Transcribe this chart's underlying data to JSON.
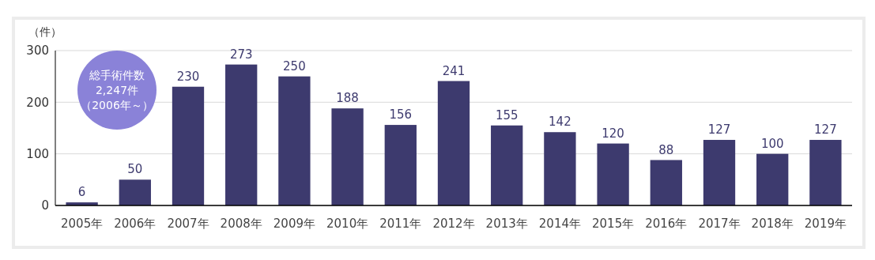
{
  "chart_data": {
    "type": "bar",
    "ylabel": "（件）",
    "categories": [
      "2005年",
      "2006年",
      "2007年",
      "2008年",
      "2009年",
      "2010年",
      "2011年",
      "2012年",
      "2013年",
      "2014年",
      "2015年",
      "2016年",
      "2017年",
      "2018年",
      "2019年"
    ],
    "values": [
      6,
      50,
      230,
      273,
      250,
      188,
      156,
      241,
      155,
      142,
      120,
      88,
      127,
      100,
      127
    ],
    "color": "#3d3a6e",
    "ylim": [
      0,
      300
    ],
    "yticks": [
      0,
      100,
      200,
      300
    ],
    "grid": "y",
    "data_labels": true,
    "annotations": [
      "総手術件数",
      "2,247件",
      "（2006年～）"
    ]
  }
}
